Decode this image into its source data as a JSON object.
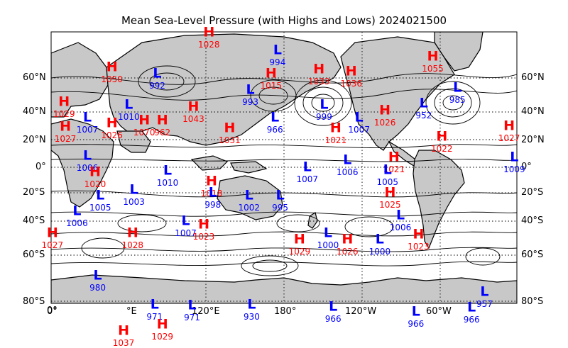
{
  "title": "Mean Sea-Level Pressure (with Highs and Lows) 2024021500",
  "colors": {
    "high": "#ff0000",
    "low": "#0000ff",
    "land": "#c8c8c8",
    "isobar": "#000000"
  },
  "map": {
    "projection": "cylindrical",
    "lon_range": [
      0,
      360
    ],
    "lat_range": [
      -80,
      80
    ],
    "graticule": "dotted"
  },
  "lat_labels_left": [
    "60°N",
    "40°N",
    "20°N",
    "0°",
    "20°S",
    "40°S",
    "60°S",
    "80°S"
  ],
  "lat_labels_right": [
    "60°N",
    "40°N",
    "20°N",
    "0°",
    "20°S",
    "40°S",
    "60°S",
    "80°S"
  ],
  "lon_labels": [
    "0°",
    "0°",
    "120°E",
    "180°",
    "120°W",
    "60°W"
  ],
  "lon_label_partial": "°E",
  "markers": [
    {
      "type": "H",
      "value": "1028",
      "lon": 122,
      "lat": 83
    },
    {
      "type": "L",
      "value": "994",
      "lon": 175,
      "lat": 73
    },
    {
      "type": "H",
      "value": "1055",
      "lon": 295,
      "lat": 70
    },
    {
      "type": "H",
      "value": "1050",
      "lon": 47,
      "lat": 65
    },
    {
      "type": "L",
      "value": "992",
      "lon": 82,
      "lat": 62
    },
    {
      "type": "H",
      "value": "1015",
      "lon": 170,
      "lat": 62
    },
    {
      "type": "H",
      "value": "1033",
      "lon": 207,
      "lat": 64
    },
    {
      "type": "H",
      "value": "1036",
      "lon": 232,
      "lat": 63
    },
    {
      "type": "L",
      "value": "993",
      "lon": 154,
      "lat": 53
    },
    {
      "type": "L",
      "value": "985",
      "lon": 314,
      "lat": 54
    },
    {
      "type": "H",
      "value": "1029",
      "lon": 10,
      "lat": 46
    },
    {
      "type": "L",
      "value": "1010",
      "lon": 60,
      "lat": 44
    },
    {
      "type": "H",
      "value": "1043",
      "lon": 110,
      "lat": 43
    },
    {
      "type": "L",
      "value": "999",
      "lon": 211,
      "lat": 44
    },
    {
      "type": "L",
      "value": "952",
      "lon": 288,
      "lat": 45
    },
    {
      "type": "H",
      "value": "1026",
      "lon": 258,
      "lat": 41
    },
    {
      "type": "L",
      "value": "1007",
      "lon": 28,
      "lat": 36
    },
    {
      "type": "H",
      "value": "1026",
      "lon": 47,
      "lat": 32
    },
    {
      "type": "H",
      "value": "1070",
      "lon": 72,
      "lat": 34
    },
    {
      "type": "H",
      "value": "962",
      "lon": 86,
      "lat": 34
    },
    {
      "type": "L",
      "value": "966",
      "lon": 173,
      "lat": 36
    },
    {
      "type": "L",
      "value": "1007",
      "lon": 238,
      "lat": 36
    },
    {
      "type": "H",
      "value": "1027",
      "lon": 11,
      "lat": 29
    },
    {
      "type": "H",
      "value": "1031",
      "lon": 138,
      "lat": 28
    },
    {
      "type": "H",
      "value": "1021",
      "lon": 220,
      "lat": 28
    },
    {
      "type": "H",
      "value": "1027",
      "lon": 354,
      "lat": 30
    },
    {
      "type": "H",
      "value": "1022",
      "lon": 302,
      "lat": 22
    },
    {
      "type": "L",
      "value": "1006",
      "lon": 28,
      "lat": 8
    },
    {
      "type": "H",
      "value": "1020",
      "lon": 34,
      "lat": -4
    },
    {
      "type": "L",
      "value": "1010",
      "lon": 90,
      "lat": -3
    },
    {
      "type": "L",
      "value": "1007",
      "lon": 198,
      "lat": 0
    },
    {
      "type": "L",
      "value": "1006",
      "lon": 229,
      "lat": 5
    },
    {
      "type": "H",
      "value": "1021",
      "lon": 265,
      "lat": 7
    },
    {
      "type": "L",
      "value": "1005",
      "lon": 260,
      "lat": -2
    },
    {
      "type": "L",
      "value": "1009",
      "lon": 358,
      "lat": 7
    },
    {
      "type": "H",
      "value": "1018",
      "lon": 124,
      "lat": -11
    },
    {
      "type": "L",
      "value": "998",
      "lon": 125,
      "lat": -20
    },
    {
      "type": "L",
      "value": "1003",
      "lon": 64,
      "lat": -18
    },
    {
      "type": "L",
      "value": "1005",
      "lon": 38,
      "lat": -22
    },
    {
      "type": "L",
      "value": "1002",
      "lon": 153,
      "lat": -22
    },
    {
      "type": "L",
      "value": "995",
      "lon": 177,
      "lat": -22
    },
    {
      "type": "H",
      "value": "1025",
      "lon": 262,
      "lat": -20
    },
    {
      "type": "L",
      "value": "1006",
      "lon": 20,
      "lat": -33
    },
    {
      "type": "L",
      "value": "1006",
      "lon": 270,
      "lat": -36
    },
    {
      "type": "L",
      "value": "1007",
      "lon": 104,
      "lat": -40
    },
    {
      "type": "H",
      "value": "1023",
      "lon": 118,
      "lat": -42
    },
    {
      "type": "L",
      "value": "1000",
      "lon": 214,
      "lat": -47
    },
    {
      "type": "H",
      "value": "1026",
      "lon": 229,
      "lat": -51
    },
    {
      "type": "L",
      "value": "1000",
      "lon": 254,
      "lat": -51
    },
    {
      "type": "H",
      "value": "1023",
      "lon": 284,
      "lat": -48
    },
    {
      "type": "H",
      "value": "1027",
      "lon": 1,
      "lat": -47
    },
    {
      "type": "H",
      "value": "1028",
      "lon": 63,
      "lat": -47
    },
    {
      "type": "H",
      "value": "1029",
      "lon": 192,
      "lat": -51
    },
    {
      "type": "L",
      "value": "980",
      "lon": 36,
      "lat": -69
    },
    {
      "type": "L",
      "value": "957",
      "lon": 335,
      "lat": -76
    },
    {
      "type": "L",
      "value": "971",
      "lon": 80,
      "lat": -84
    },
    {
      "type": "L",
      "value": "971",
      "lon": 109,
      "lat": -85
    },
    {
      "type": "L",
      "value": "930",
      "lon": 155,
      "lat": -84
    },
    {
      "type": "L",
      "value": "966",
      "lon": 218,
      "lat": -87
    },
    {
      "type": "L",
      "value": "966",
      "lon": 282,
      "lat": -93
    },
    {
      "type": "L",
      "value": "966",
      "lon": 325,
      "lat": -88
    },
    {
      "type": "H",
      "value": "1029",
      "lon": 86,
      "lat": -109
    },
    {
      "type": "H",
      "value": "1037",
      "lon": 56,
      "lat": -117
    }
  ]
}
